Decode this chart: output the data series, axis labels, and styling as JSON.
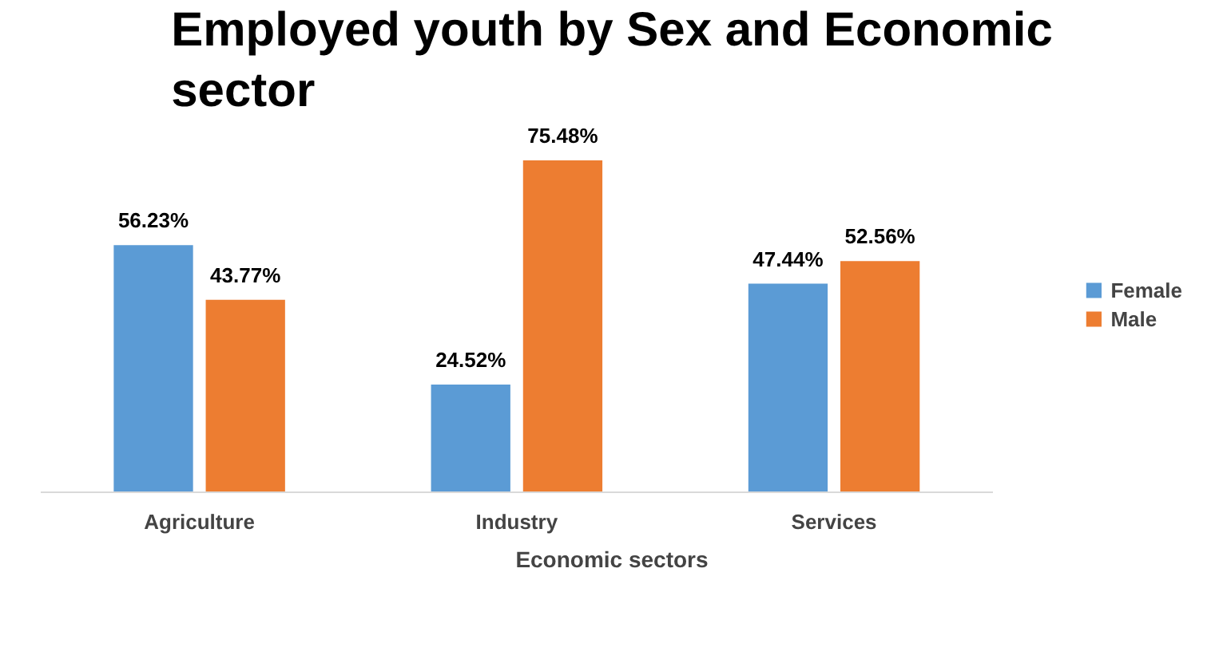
{
  "chart_data": {
    "type": "bar",
    "title": "Employed youth by Sex and Economic sector",
    "xlabel": "Economic sectors",
    "categories": [
      "Agriculture",
      "Industry",
      "Services"
    ],
    "series": [
      {
        "name": "Female",
        "color": "#5b9bd5",
        "values": [
          56.23,
          24.52,
          47.44
        ],
        "value_labels": [
          "56.23%",
          "24.52%",
          "47.44%"
        ]
      },
      {
        "name": "Male",
        "color": "#ed7d31",
        "values": [
          43.77,
          75.48,
          52.56
        ],
        "value_labels": [
          "43.77%",
          "75.48%",
          "52.56%"
        ]
      }
    ],
    "legend": "right",
    "grid": false
  }
}
